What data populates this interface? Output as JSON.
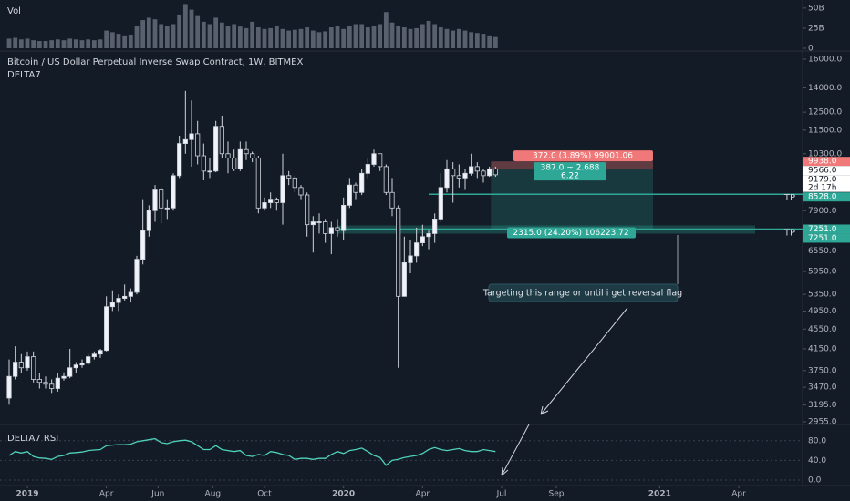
{
  "chart_data": {
    "type": "candlestick",
    "title": "Bitcoin / US Dollar Perpetual Inverse Swap Contract, 1W, BITMEX",
    "indicator": "DELTA7",
    "log": true,
    "grid": false,
    "up_color": "#f0f3fa",
    "down_color": "#131b26",
    "xlim": [
      -4.5,
      127.5
    ],
    "xticks": [
      {
        "value": 0,
        "label": "2019"
      },
      {
        "value": 13,
        "label": "Apr"
      },
      {
        "value": 21.5,
        "label": "Jun"
      },
      {
        "value": 30.5,
        "label": "Aug"
      },
      {
        "value": 39,
        "label": "Oct"
      },
      {
        "value": 52,
        "label": "2020"
      },
      {
        "value": 65,
        "label": "Apr"
      },
      {
        "value": 78,
        "label": "Jul"
      },
      {
        "value": 87,
        "label": "Sep"
      },
      {
        "value": 104,
        "label": "2021"
      },
      {
        "value": 117,
        "label": "Apr"
      }
    ],
    "ylim": [
      2930,
      16480
    ],
    "yticks": [
      {
        "value": 16000,
        "label": "16000.0"
      },
      {
        "value": 14000,
        "label": "14000.0"
      },
      {
        "value": 12500,
        "label": "12500.0"
      },
      {
        "value": 11500,
        "label": "11500.0"
      },
      {
        "value": 10300,
        "label": "10300.0"
      },
      {
        "value": 7900,
        "label": "7900.0"
      },
      {
        "value": 6550,
        "label": "6550.0"
      },
      {
        "value": 5950,
        "label": "5950.0"
      },
      {
        "value": 5350,
        "label": "5350.0"
      },
      {
        "value": 4950,
        "label": "4950.0"
      },
      {
        "value": 4550,
        "label": "4550.0"
      },
      {
        "value": 4150,
        "label": "4150.0"
      },
      {
        "value": 3750,
        "label": "3750.0"
      },
      {
        "value": 3470,
        "label": "3470.0"
      },
      {
        "value": 3195,
        "label": "3195.0"
      },
      {
        "value": 2955,
        "label": "2955.0"
      }
    ],
    "x": [
      -3,
      -2,
      -1,
      0,
      1,
      2,
      3,
      4,
      5,
      6,
      7,
      8,
      9,
      10,
      11,
      12,
      13,
      14,
      15,
      16,
      17,
      18,
      19,
      20,
      21,
      22,
      23,
      24,
      25,
      26,
      27,
      28,
      29,
      30,
      31,
      32,
      33,
      34,
      35,
      36,
      37,
      38,
      39,
      40,
      41,
      42,
      43,
      44,
      45,
      46,
      47,
      48,
      49,
      50,
      51,
      52,
      53,
      54,
      55,
      56,
      57,
      58,
      59,
      60,
      61,
      62,
      63,
      64,
      65,
      66,
      67,
      68,
      69,
      70,
      71,
      72,
      73,
      74,
      75,
      76,
      77
    ],
    "open": [
      3300,
      3650,
      3900,
      3800,
      4000,
      3600,
      3550,
      3520,
      3450,
      3620,
      3650,
      3800,
      3850,
      3880,
      4000,
      4050,
      4120,
      5050,
      5150,
      5250,
      5300,
      5400,
      6300,
      7200,
      7900,
      8700,
      8000,
      8000,
      9300,
      10800,
      11000,
      11300,
      10200,
      9500,
      9500,
      11700,
      10300,
      10100,
      9600,
      10500,
      10300,
      10100,
      8000,
      8200,
      8300,
      8200,
      9300,
      9200,
      8800,
      8500,
      7400,
      7500,
      7500,
      7100,
      7300,
      7200,
      8100,
      8900,
      8600,
      9400,
      9800,
      10300,
      9700,
      8600,
      8000,
      5300,
      6200,
      6400,
      6800,
      7000,
      7100,
      7600,
      8800,
      9600,
      9300,
      9200,
      9400,
      9700,
      9500,
      9300,
      9600
    ],
    "high": [
      3950,
      4200,
      4050,
      4100,
      4100,
      3700,
      3650,
      3600,
      3700,
      3720,
      4150,
      3900,
      3950,
      4050,
      4100,
      4150,
      5300,
      5450,
      5350,
      5600,
      5500,
      6400,
      8300,
      8100,
      8900,
      8800,
      8300,
      9400,
      11200,
      13800,
      13200,
      12000,
      10800,
      10100,
      12000,
      12300,
      10900,
      10500,
      10900,
      10900,
      10400,
      10200,
      8400,
      8600,
      8400,
      10300,
      9500,
      9300,
      8900,
      8600,
      7700,
      7800,
      7600,
      7500,
      7600,
      8400,
      9200,
      9000,
      9600,
      10100,
      10500,
      10300,
      9800,
      9200,
      8100,
      7000,
      6900,
      7300,
      7400,
      7200,
      7800,
      9400,
      10000,
      9900,
      9800,
      9600,
      10300,
      9900,
      9600,
      9700,
      9700
    ],
    "low": [
      3200,
      3600,
      3700,
      3750,
      3550,
      3450,
      3450,
      3380,
      3400,
      3580,
      3620,
      3700,
      3800,
      3850,
      3950,
      3980,
      4100,
      4950,
      4950,
      5200,
      5150,
      5350,
      6150,
      7000,
      7500,
      7450,
      7600,
      7900,
      9200,
      10300,
      9700,
      9800,
      9100,
      9200,
      9450,
      10100,
      9400,
      9500,
      9500,
      10000,
      9900,
      7800,
      7900,
      8000,
      7900,
      7400,
      8900,
      8600,
      8300,
      7000,
      6500,
      7100,
      6800,
      6450,
      7000,
      6900,
      8000,
      8300,
      8500,
      9200,
      9700,
      9500,
      8500,
      7700,
      3800,
      5300,
      5900,
      6200,
      6700,
      6600,
      6800,
      7500,
      8600,
      8200,
      8800,
      8700,
      9300,
      9200,
      9000,
      9250,
      9250
    ],
    "close": [
      3650,
      3900,
      3800,
      4000,
      3600,
      3550,
      3520,
      3450,
      3620,
      3650,
      3800,
      3850,
      3880,
      4000,
      4050,
      4120,
      5050,
      5150,
      5250,
      5300,
      5400,
      6300,
      7200,
      7900,
      8700,
      8000,
      8000,
      9300,
      10800,
      11000,
      11300,
      10200,
      9500,
      9500,
      11700,
      10300,
      10100,
      9600,
      10500,
      10300,
      10100,
      8000,
      8200,
      8300,
      8200,
      9300,
      9200,
      8800,
      8500,
      7400,
      7500,
      7500,
      7100,
      7300,
      7200,
      8100,
      8900,
      8600,
      9400,
      9800,
      10300,
      9700,
      8600,
      8000,
      5300,
      6200,
      6400,
      6800,
      7000,
      7100,
      7600,
      8800,
      9600,
      9300,
      9200,
      9400,
      9700,
      9500,
      9300,
      9600,
      9338
    ],
    "price_labels": [
      {
        "value": 9938,
        "label": "9938.0",
        "color": "#f07878",
        "text_color": "#ffffff"
      },
      {
        "value": 9566,
        "label": "9566.0",
        "color": "#ffffff",
        "text_color": "#131722"
      },
      {
        "value": 9179,
        "label": "9179.0",
        "color": "#ffffff",
        "text_color": "#131722"
      },
      {
        "value": 8528,
        "label": "8528.0",
        "color": "#2fa796",
        "text_color": "#ffffff"
      },
      {
        "value": 7251,
        "label": "7251.0",
        "color": "#2fa796",
        "text_color": "#ffffff"
      },
      {
        "value": 7251,
        "label": "7251.0",
        "color": "#2fa796",
        "text_color": "#ffffff"
      }
    ],
    "countdown": "2d 17h",
    "levels": [
      {
        "value": 8528,
        "label": "TP"
      },
      {
        "value": 7251,
        "label": "TP"
      }
    ],
    "position": {
      "stop_text": "372.0 (3.89%) 99001.06",
      "ratio_text": "387.0 ~ 2.688",
      "ratio_sub": "6.22",
      "target_text": "2315.0 (24.20%) 106223.72"
    },
    "annotation": "Targeting this range or until i get reversal flag",
    "volume": {
      "label": "Vol",
      "color": "#6b7280",
      "ylim": [
        0,
        60
      ],
      "yticks": [
        {
          "value": 50,
          "label": "50B"
        },
        {
          "value": 25,
          "label": "25B"
        },
        0
      ],
      "values": [
        12,
        13,
        11,
        12,
        10,
        9,
        9,
        10,
        11,
        10,
        12,
        11,
        10,
        11,
        10,
        11,
        22,
        20,
        18,
        16,
        17,
        28,
        35,
        38,
        36,
        30,
        28,
        30,
        42,
        55,
        48,
        40,
        33,
        30,
        38,
        32,
        28,
        30,
        27,
        25,
        33,
        26,
        24,
        25,
        28,
        24,
        22,
        23,
        24,
        26,
        22,
        20,
        21,
        26,
        28,
        24,
        28,
        30,
        30,
        26,
        28,
        30,
        45,
        32,
        28,
        26,
        24,
        25,
        30,
        34,
        30,
        26,
        24,
        22,
        24,
        22,
        20,
        19,
        18,
        16,
        14
      ]
    },
    "rsi": {
      "label": "DELTA7 RSI",
      "color": "#4fd1b9",
      "ylim": [
        -11,
        111
      ],
      "yticks": [
        {
          "value": 80,
          "label": "80.0"
        },
        {
          "value": 40,
          "label": "40.0"
        },
        {
          "value": 0,
          "label": "0.0"
        }
      ],
      "values": [
        50,
        58,
        55,
        58,
        48,
        45,
        44,
        42,
        48,
        50,
        55,
        56,
        57,
        60,
        61,
        62,
        70,
        71,
        72,
        72,
        73,
        78,
        80,
        82,
        84,
        76,
        74,
        78,
        80,
        81,
        78,
        70,
        62,
        62,
        70,
        62,
        60,
        58,
        60,
        50,
        48,
        52,
        50,
        58,
        56,
        52,
        50,
        42,
        44,
        44,
        42,
        44,
        44,
        52,
        58,
        54,
        60,
        62,
        65,
        58,
        50,
        46,
        30,
        40,
        42,
        46,
        48,
        50,
        54,
        62,
        66,
        62,
        60,
        62,
        64,
        60,
        58,
        58,
        62,
        60,
        58
      ]
    }
  }
}
